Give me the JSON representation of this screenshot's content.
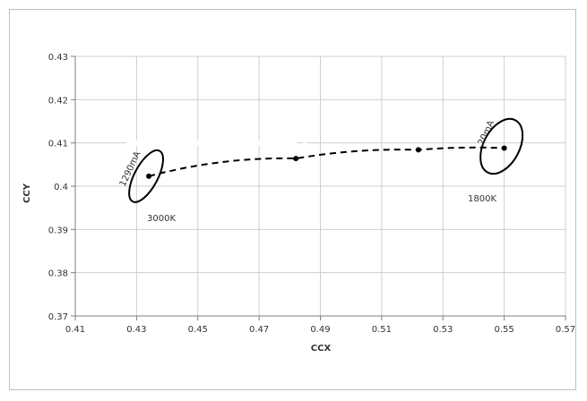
{
  "chart_data": {
    "type": "scatter",
    "xlabel": "CCX",
    "ylabel": "CCY",
    "xlim": [
      0.41,
      0.57
    ],
    "ylim": [
      0.37,
      0.43
    ],
    "x_ticks": [
      "0.41",
      "0.43",
      "0.45",
      "0.47",
      "0.49",
      "0.51",
      "0.53",
      "0.55",
      "0.57"
    ],
    "y_ticks": [
      "0.43",
      "0.42",
      "0.41",
      "0.4",
      "0.39",
      "0.38",
      "0.37"
    ],
    "grid": true,
    "series": [
      {
        "style": "dashed",
        "points": [
          {
            "x": 0.434,
            "y": 0.4023
          },
          {
            "x": 0.482,
            "y": 0.4064
          },
          {
            "x": 0.522,
            "y": 0.4084
          },
          {
            "x": 0.55,
            "y": 0.4088
          }
        ]
      }
    ],
    "annotations": [
      {
        "text": "1290mA"
      },
      {
        "text": "3000K"
      },
      {
        "text": "20mA"
      },
      {
        "text": "1800K"
      }
    ]
  }
}
